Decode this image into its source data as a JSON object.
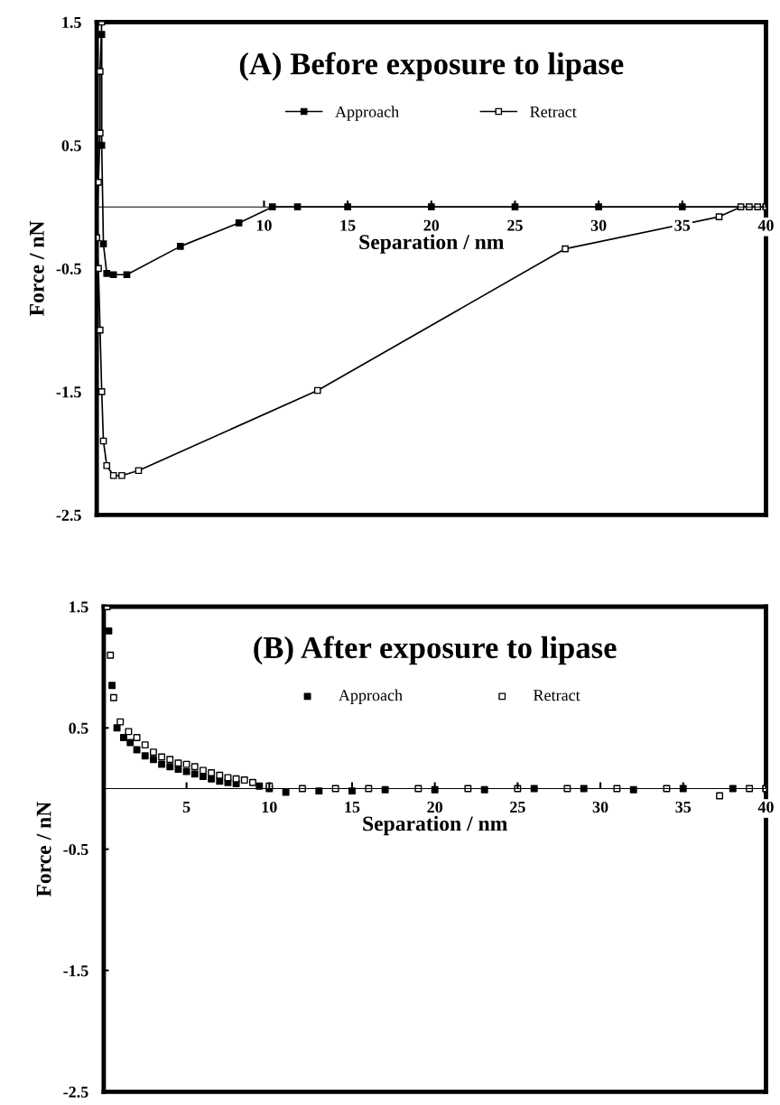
{
  "chart_data": [
    {
      "type": "line",
      "title": "(A) Before exposure to lipase",
      "xlabel": "Separation / nm",
      "ylabel": "Force / nN",
      "xlim": [
        0,
        40
      ],
      "ylim": [
        -2.5,
        1.5
      ],
      "xticks": [
        10,
        15,
        20,
        25,
        30,
        35,
        40
      ],
      "yticks": [
        1.5,
        0.5,
        -0.5,
        -1.5,
        -2.5
      ],
      "grid": false,
      "legend": "top",
      "marker": "square",
      "line_style": "solid",
      "series": [
        {
          "name": "Approach",
          "color": "#000000",
          "x": [
            40,
            35,
            30,
            25,
            20,
            15,
            12,
            10.5,
            8.5,
            5.0,
            1.8,
            1.0,
            0.6,
            0.4,
            0.3,
            0.3
          ],
          "values": [
            0,
            0,
            0,
            0,
            0,
            0,
            0,
            0,
            -0.13,
            -0.32,
            -0.55,
            -0.55,
            -0.54,
            -0.3,
            0.5,
            1.4
          ]
        },
        {
          "name": "Retract",
          "color": "#000000",
          "x": [
            40,
            39.5,
            39,
            38.5,
            37.2,
            28,
            13.2,
            2.5,
            1.5,
            1.0,
            0.6,
            0.4,
            0.3,
            0.2,
            0.1,
            0.0,
            0.1,
            0.2,
            0.2,
            0.3
          ],
          "values": [
            0,
            0,
            0,
            0,
            -0.08,
            -0.34,
            -1.49,
            -2.14,
            -2.18,
            -2.18,
            -2.1,
            -1.9,
            -1.5,
            -1.0,
            -0.5,
            -0.25,
            0.2,
            0.6,
            1.1,
            1.5
          ]
        }
      ]
    },
    {
      "type": "scatter",
      "title": "(B) After exposure to lipase",
      "xlabel": "Separation / nm",
      "ylabel": "Force / nN",
      "xlim": [
        0,
        40
      ],
      "ylim": [
        -2.5,
        1.5
      ],
      "xticks": [
        5,
        10,
        15,
        20,
        25,
        30,
        35,
        40
      ],
      "yticks": [
        1.5,
        0.5,
        -0.5,
        -1.5,
        -2.5
      ],
      "grid": false,
      "legend": "top",
      "marker": "square",
      "series": [
        {
          "name": "Approach",
          "color": "#000000",
          "x": [
            0.3,
            0.5,
            0.8,
            1.2,
            1.6,
            2.0,
            2.5,
            3.0,
            3.5,
            4.0,
            4.5,
            5.0,
            5.5,
            6.0,
            6.5,
            7.0,
            7.5,
            8.0,
            9.4,
            10.0,
            11.0,
            13,
            15,
            17,
            20,
            23,
            26,
            29,
            32,
            35,
            38,
            40
          ],
          "values": [
            1.3,
            0.85,
            0.5,
            0.42,
            0.38,
            0.32,
            0.27,
            0.24,
            0.2,
            0.18,
            0.16,
            0.14,
            0.12,
            0.1,
            0.08,
            0.06,
            0.05,
            0.04,
            0.02,
            0.0,
            -0.03,
            -0.02,
            -0.02,
            -0.01,
            -0.01,
            -0.01,
            0,
            0,
            -0.01,
            0,
            0,
            0
          ]
        },
        {
          "name": "Retract",
          "color": "#000000",
          "x": [
            0.2,
            0.4,
            0.6,
            1.0,
            1.5,
            2.0,
            2.5,
            3.0,
            3.5,
            4.0,
            4.5,
            5.0,
            5.5,
            6.0,
            6.5,
            7.0,
            7.5,
            8.0,
            8.5,
            9.0,
            10.0,
            12,
            14,
            16,
            19,
            22,
            25,
            28,
            31,
            34,
            37.2,
            39,
            40
          ],
          "values": [
            1.5,
            1.1,
            0.75,
            0.55,
            0.47,
            0.42,
            0.36,
            0.3,
            0.26,
            0.24,
            0.21,
            0.2,
            0.18,
            0.15,
            0.13,
            0.11,
            0.09,
            0.08,
            0.07,
            0.05,
            0.02,
            0.0,
            0.0,
            0.0,
            0.0,
            0.0,
            0.0,
            0.0,
            0.0,
            0.0,
            -0.06,
            0,
            0
          ]
        }
      ]
    }
  ]
}
